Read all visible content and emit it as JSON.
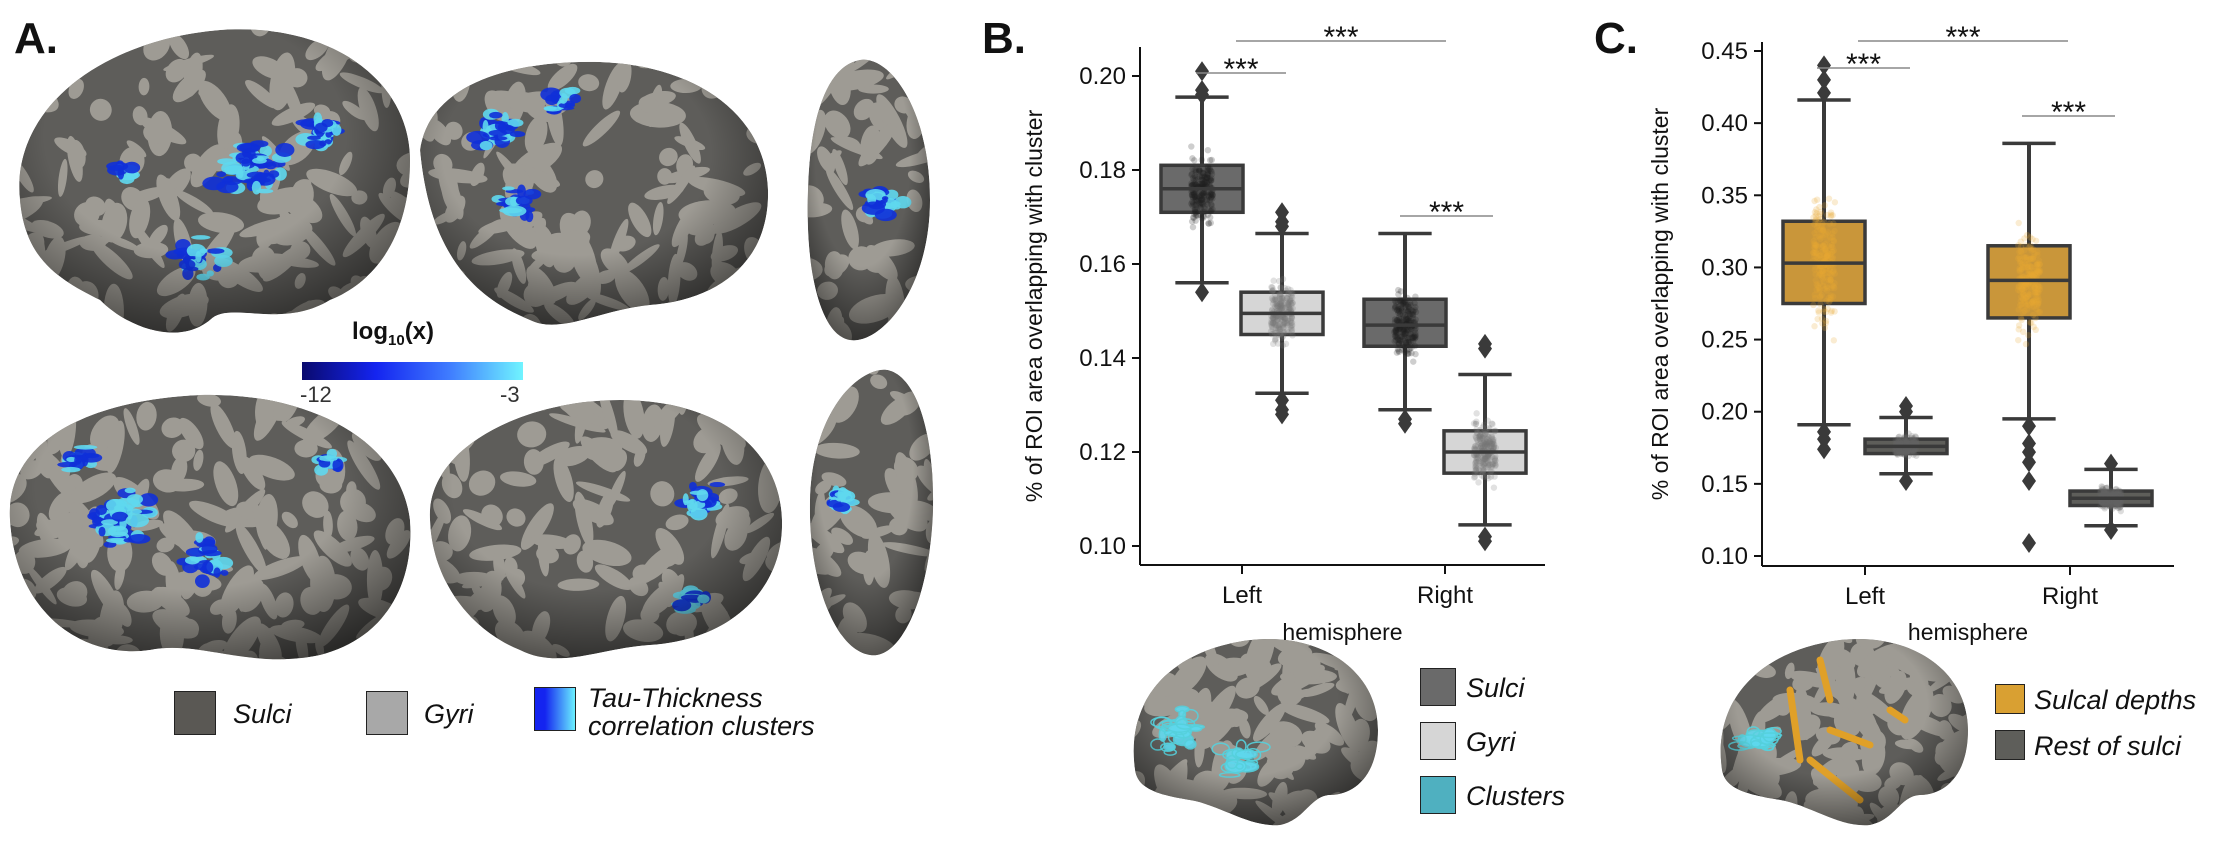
{
  "panel_a": {
    "letter": "A.",
    "colorbar": {
      "label_base": "log",
      "label_sub": "10",
      "label_tail": "(x)",
      "min_label": "-12",
      "max_label": "-3",
      "colors": [
        "#0a0a6e",
        "#1424f0",
        "#3f7cff",
        "#70f4ff"
      ]
    },
    "legend": [
      {
        "label": "Sulci",
        "color": "#5a5854"
      },
      {
        "label": "Gyri",
        "color": "#a8a8a8"
      },
      {
        "label_line1": "Tau-Thickness",
        "label_line2": "correlation clusters",
        "color": "#1a3cf0"
      }
    ],
    "brain_colors": {
      "sulci": "#5e5d5a",
      "gyri": "#9e9b94",
      "cluster_low": "#1030d8",
      "cluster_high": "#5fd8ee"
    }
  },
  "panel_b": {
    "letter": "B.",
    "legend": [
      {
        "label": "Sulci",
        "color": "#6a6a6a"
      },
      {
        "label": "Gyri",
        "color": "#d6d6d6"
      },
      {
        "label": "Clusters",
        "color": "#4fb0c0"
      }
    ]
  },
  "panel_c": {
    "letter": "C.",
    "legend": [
      {
        "label": "Sulcal depths",
        "color": "#d9a032"
      },
      {
        "label": "Rest of sulci",
        "color": "#5e5e5a"
      }
    ]
  },
  "chart_data": [
    {
      "type": "box",
      "panel": "B",
      "xlabel": "hemisphere",
      "ylabel": "% of ROI area overlapping with cluster",
      "categories": [
        "Left",
        "Right"
      ],
      "ylim": [
        0.096,
        0.206
      ],
      "yticks": [
        "0.10",
        "0.12",
        "0.14",
        "0.16",
        "0.18",
        "0.20"
      ],
      "grid": false,
      "series": [
        {
          "name": "Sulci",
          "color": "#6a6a6a",
          "point_color": "#222222",
          "boxes": [
            {
              "category": "Left",
              "whislo": 0.156,
              "q1": 0.171,
              "med": 0.176,
              "q3": 0.181,
              "whishi": 0.1955,
              "fliers": [
                0.201,
                0.197,
                0.196,
                0.154
              ]
            },
            {
              "category": "Right",
              "whislo": 0.129,
              "q1": 0.1425,
              "med": 0.147,
              "q3": 0.1525,
              "whishi": 0.1665,
              "fliers": [
                0.127,
                0.126
              ]
            }
          ]
        },
        {
          "name": "Gyri",
          "color": "#d6d6d6",
          "point_color": "#777777",
          "boxes": [
            {
              "category": "Left",
              "whislo": 0.1325,
              "q1": 0.145,
              "med": 0.1495,
              "q3": 0.154,
              "whishi": 0.1665,
              "fliers": [
                0.171,
                0.169,
                0.168,
                0.131,
                0.129,
                0.128
              ]
            },
            {
              "category": "Right",
              "whislo": 0.1045,
              "q1": 0.1155,
              "med": 0.12,
              "q3": 0.1245,
              "whishi": 0.1365,
              "fliers": [
                0.143,
                0.142,
                0.102,
                0.101
              ]
            }
          ]
        }
      ],
      "significance": [
        {
          "between": [
            "Left Sulci",
            "Right Sulci"
          ],
          "label": "***"
        },
        {
          "between": [
            "Left Sulci",
            "Left Gyri"
          ],
          "label": "***"
        },
        {
          "between": [
            "Right Sulci",
            "Right Gyri"
          ],
          "label": "***"
        }
      ]
    },
    {
      "type": "box",
      "panel": "C",
      "xlabel": "hemisphere",
      "ylabel": "% of ROI area overlapping with cluster",
      "categories": [
        "Left",
        "Right"
      ],
      "ylim": [
        0.093,
        0.456
      ],
      "yticks": [
        "0.10",
        "0.15",
        "0.20",
        "0.25",
        "0.30",
        "0.35",
        "0.40",
        "0.45"
      ],
      "grid": false,
      "series": [
        {
          "name": "Sulcal depths",
          "color": "#c9963a",
          "point_color": "#eaa830",
          "boxes": [
            {
              "category": "Left",
              "whislo": 0.191,
              "q1": 0.275,
              "med": 0.303,
              "q3": 0.332,
              "whishi": 0.416,
              "fliers": [
                0.44,
                0.43,
                0.421,
                0.186,
                0.181,
                0.174
              ]
            },
            {
              "category": "Right",
              "whislo": 0.195,
              "q1": 0.265,
              "med": 0.291,
              "q3": 0.315,
              "whishi": 0.386,
              "fliers": [
                0.19,
                0.178,
                0.172,
                0.165,
                0.152,
                0.109
              ]
            }
          ]
        },
        {
          "name": "Rest of sulci",
          "color": "#5e5e5a",
          "point_color": "#666666",
          "boxes": [
            {
              "category": "Left",
              "whislo": 0.157,
              "q1": 0.171,
              "med": 0.176,
              "q3": 0.181,
              "whishi": 0.196,
              "fliers": [
                0.204,
                0.2,
                0.152
              ]
            },
            {
              "category": "Right",
              "whislo": 0.121,
              "q1": 0.135,
              "med": 0.14,
              "q3": 0.145,
              "whishi": 0.16,
              "fliers": [
                0.164,
                0.118
              ]
            }
          ]
        }
      ],
      "significance": [
        {
          "between": [
            "Left Sulcal depths",
            "Right Sulcal depths"
          ],
          "label": "***"
        },
        {
          "between": [
            "Left Sulcal depths",
            "Left Rest of sulci"
          ],
          "label": "***"
        },
        {
          "between": [
            "Right Sulcal depths",
            "Right Rest of sulci"
          ],
          "label": "***"
        }
      ]
    }
  ]
}
